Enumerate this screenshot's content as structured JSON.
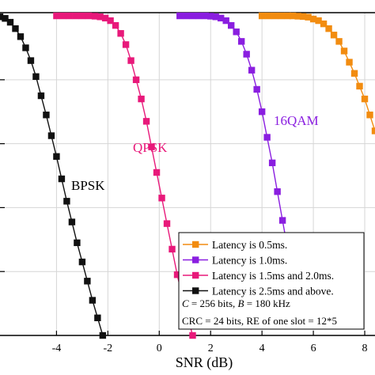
{
  "chart_data": {
    "type": "line",
    "xlabel": "SNR (dB)",
    "ylabel": "",
    "xlim": [
      -6.2,
      8.4
    ],
    "ylim": [
      0,
      1.01
    ],
    "xticks": [
      "-4",
      "-2",
      "0",
      "2",
      "4",
      "6",
      "8"
    ],
    "grid": true,
    "legend_position": "bottom-right",
    "series": [
      {
        "name": "Latency is 0.5ms.",
        "color": "#f28c10",
        "label": "",
        "x": [
          4.0,
          4.25,
          4.5,
          4.75,
          5.0,
          5.2,
          5.4,
          5.6,
          5.8,
          6.0,
          6.2,
          6.4,
          6.6,
          6.8,
          7.0,
          7.2,
          7.4,
          7.6,
          7.8,
          8.0,
          8.2,
          8.4
        ],
        "y": [
          1.0,
          1.0,
          1.0,
          1.0,
          1.0,
          1.0,
          0.999,
          0.998,
          0.996,
          0.99,
          0.985,
          0.975,
          0.96,
          0.94,
          0.92,
          0.89,
          0.855,
          0.82,
          0.78,
          0.74,
          0.69,
          0.64
        ]
      },
      {
        "name": "Latency is 1.0ms.",
        "color": "#8a1ee0",
        "label": "16QAM",
        "x": [
          0.8,
          1.05,
          1.3,
          1.55,
          1.8,
          2.0,
          2.2,
          2.4,
          2.6,
          2.8,
          3.0,
          3.2,
          3.4,
          3.6,
          3.8,
          4.0,
          4.2,
          4.4,
          4.6,
          4.8,
          5.0
        ],
        "y": [
          1.0,
          1.0,
          1.0,
          1.0,
          1.0,
          0.999,
          0.997,
          0.993,
          0.985,
          0.97,
          0.95,
          0.92,
          0.88,
          0.83,
          0.77,
          0.7,
          0.62,
          0.54,
          0.45,
          0.36,
          0.27
        ]
      },
      {
        "name": "Latency is 1.5ms and 2.0ms.",
        "color": "#e8197a",
        "label": "QPSK",
        "x": [
          -4.0,
          -3.75,
          -3.5,
          -3.25,
          -3.0,
          -2.75,
          -2.5,
          -2.3,
          -2.1,
          -1.9,
          -1.7,
          -1.5,
          -1.3,
          -1.1,
          -0.9,
          -0.7,
          -0.5,
          -0.3,
          -0.1,
          0.1,
          0.3,
          0.5,
          0.7,
          0.9,
          1.1,
          1.3
        ],
        "y": [
          1.0,
          1.0,
          1.0,
          1.0,
          1.0,
          1.0,
          0.999,
          0.997,
          0.993,
          0.985,
          0.97,
          0.945,
          0.91,
          0.86,
          0.8,
          0.74,
          0.67,
          0.59,
          0.51,
          0.43,
          0.35,
          0.27,
          0.19,
          0.12,
          0.06,
          0.0
        ]
      },
      {
        "name": "Latency is 2.5ms and above.",
        "color": "#111111",
        "label": "BPSK",
        "x": [
          -6.2,
          -6.0,
          -5.8,
          -5.6,
          -5.4,
          -5.2,
          -5.0,
          -4.8,
          -4.6,
          -4.4,
          -4.2,
          -4.0,
          -3.8,
          -3.6,
          -3.4,
          -3.2,
          -3.0,
          -2.8,
          -2.6,
          -2.4,
          -2.2
        ],
        "y": [
          0.997,
          0.992,
          0.98,
          0.96,
          0.935,
          0.9,
          0.86,
          0.81,
          0.75,
          0.69,
          0.625,
          0.56,
          0.49,
          0.42,
          0.355,
          0.29,
          0.23,
          0.17,
          0.11,
          0.055,
          0.0
        ]
      }
    ],
    "annotations": [
      "C = 256 bits, B = 180 kHz",
      "CRC = 24 bits, RE of one slot = 12*5"
    ]
  }
}
